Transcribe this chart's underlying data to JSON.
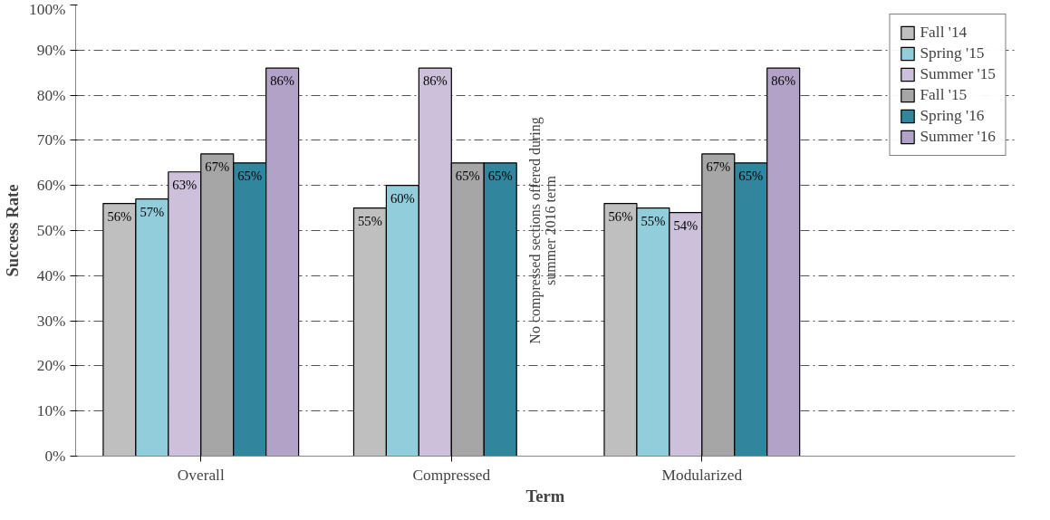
{
  "chart_data": {
    "type": "bar",
    "xlabel": "Term",
    "ylabel": "Success Rate",
    "categories": [
      "Overall",
      "Compressed",
      "Modularized"
    ],
    "series": [
      {
        "name": "Fall '14",
        "color": "#bfbfbf",
        "values": [
          56,
          55,
          56
        ],
        "value_labels": [
          "56%",
          "55%",
          "56%"
        ]
      },
      {
        "name": "Spring '15",
        "color": "#92cddc",
        "values": [
          57,
          60,
          55
        ],
        "value_labels": [
          "57%",
          "60%",
          "55%"
        ]
      },
      {
        "name": "Summer '15",
        "color": "#ccc0da",
        "values": [
          63,
          86,
          54
        ],
        "value_labels": [
          "63%",
          "86%",
          "54%"
        ]
      },
      {
        "name": "Fall '15",
        "color": "#a6a6a6",
        "values": [
          67,
          65,
          67
        ],
        "value_labels": [
          "67%",
          "65%",
          "67%"
        ]
      },
      {
        "name": "Spring '16",
        "color": "#31859c",
        "values": [
          65,
          65,
          65
        ],
        "value_labels": [
          "65%",
          "65%",
          "65%"
        ]
      },
      {
        "name": "Summer '16",
        "color": "#b3a2c7",
        "values": [
          86,
          null,
          86
        ],
        "value_labels": [
          "86%",
          null,
          "86%"
        ]
      }
    ],
    "ylim": [
      0,
      100
    ],
    "yticks": [
      {
        "value": 0,
        "label": "0%"
      },
      {
        "value": 10,
        "label": "10%"
      },
      {
        "value": 20,
        "label": "20%"
      },
      {
        "value": 30,
        "label": "30%"
      },
      {
        "value": 40,
        "label": "40%"
      },
      {
        "value": 50,
        "label": "50%"
      },
      {
        "value": 60,
        "label": "60%"
      },
      {
        "value": 70,
        "label": "70%"
      },
      {
        "value": 80,
        "label": "80%"
      },
      {
        "value": 90,
        "label": "90%"
      },
      {
        "value": 100,
        "label": "100%"
      }
    ],
    "grid": "y",
    "legend": "right",
    "annotations": [
      "No compressed sections offered during\nsummer 2016 term"
    ]
  }
}
